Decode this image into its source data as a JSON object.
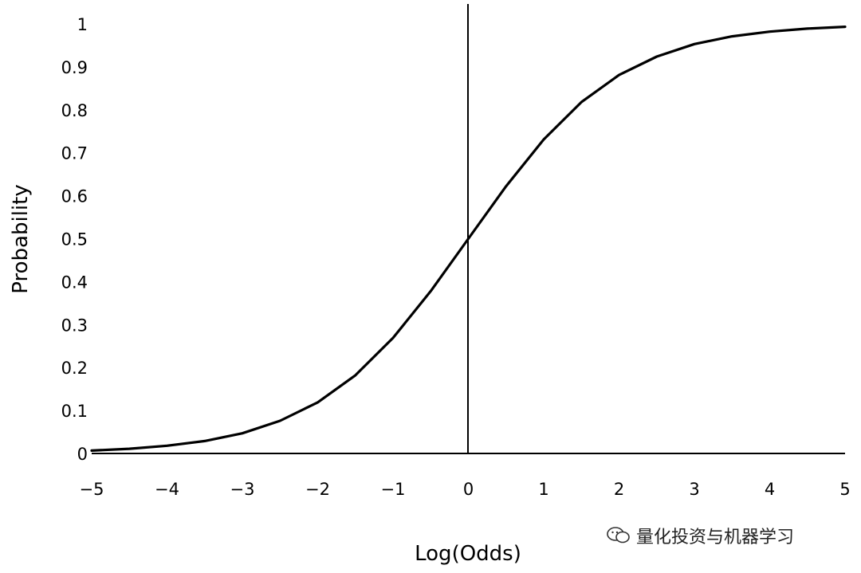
{
  "chart_data": {
    "type": "line",
    "title": "",
    "xlabel": "Log(Odds)",
    "ylabel": "Probability",
    "xlim": [
      -5,
      5
    ],
    "ylim": [
      0,
      1
    ],
    "x_ticks": [
      -5,
      -4,
      -3,
      -2,
      -1,
      0,
      1,
      2,
      3,
      4,
      5
    ],
    "x_tick_labels": [
      "−5",
      "−4",
      "−3",
      "−2",
      "−1",
      "0",
      "1",
      "2",
      "3",
      "4",
      "5"
    ],
    "y_ticks": [
      0,
      0.1,
      0.2,
      0.3,
      0.4,
      0.5,
      0.6,
      0.7,
      0.8,
      0.9,
      1
    ],
    "y_tick_labels": [
      "0",
      "0.1",
      "0.2",
      "0.3",
      "0.4",
      "0.5",
      "0.6",
      "0.7",
      "0.8",
      "0.9",
      "1"
    ],
    "grid": false,
    "series": [
      {
        "x": [
          -5,
          -4.5,
          -4,
          -3.5,
          -3,
          -2.5,
          -2,
          -1.5,
          -1,
          -0.5,
          0,
          0.5,
          1,
          1.5,
          2,
          2.5,
          3,
          3.5,
          4,
          4.5,
          5
        ],
        "y": [
          0.0067,
          0.011,
          0.018,
          0.029,
          0.047,
          0.076,
          0.119,
          0.182,
          0.269,
          0.378,
          0.5,
          0.622,
          0.731,
          0.818,
          0.881,
          0.924,
          0.953,
          0.971,
          0.982,
          0.989,
          0.9933
        ],
        "color": "#000000"
      }
    ]
  },
  "watermark": {
    "icon": "wechat-icon",
    "text": "量化投资与机器学习"
  }
}
